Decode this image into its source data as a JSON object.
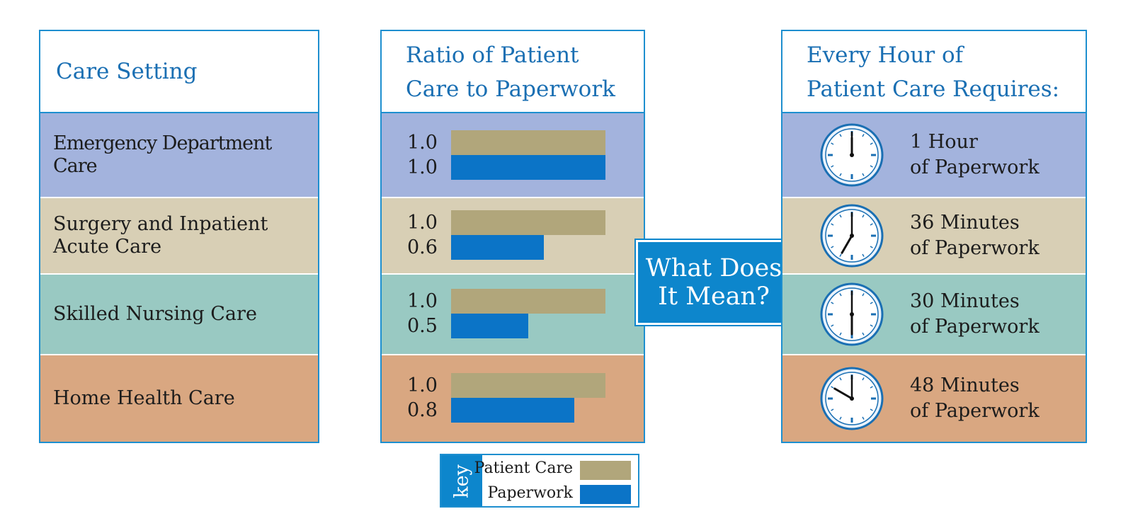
{
  "colors": {
    "header_text": "#1a6fb3",
    "border": "#1e8fcf",
    "patient_care": "#b1a67b",
    "paperwork": "#0b74c7",
    "row_colors": [
      "#a3b3dd",
      "#d8cfb5",
      "#99c9c2",
      "#d9a781"
    ]
  },
  "headers": {
    "setting": "Care Setting",
    "ratio_line1": "Ratio of Patient",
    "ratio_line2": "Care to Paperwork",
    "requires_line1": "Every Hour of",
    "requires_line2": "Patient Care Requires:"
  },
  "center": {
    "line1": "What Does",
    "line2": "It Mean?"
  },
  "rows": [
    {
      "setting_line1": "Emergency Department Care",
      "setting_line2": "",
      "req_line1": "1 Hour",
      "req_line2": "of Paperwork",
      "clock_icon": "clock-icon"
    },
    {
      "setting_line1": "Surgery and Inpatient",
      "setting_line2": "Acute Care",
      "req_line1": "36 Minutes",
      "req_line2": "of Paperwork",
      "clock_icon": "clock-icon"
    },
    {
      "setting_line1": "Skilled Nursing Care",
      "setting_line2": "",
      "req_line1": "30 Minutes",
      "req_line2": "of Paperwork",
      "clock_icon": "clock-icon"
    },
    {
      "setting_line1": "Home Health Care",
      "setting_line2": "",
      "req_line1": "48 Minutes",
      "req_line2": "of Paperwork",
      "clock_icon": "clock-icon"
    }
  ],
  "chart_data": {
    "type": "bar",
    "title": "Ratio of Patient Care to Paperwork",
    "categories": [
      "Emergency Department Care",
      "Surgery and Inpatient Acute Care",
      "Skilled Nursing Care",
      "Home Health Care"
    ],
    "series": [
      {
        "name": "Patient Care",
        "values": [
          1.0,
          1.0,
          1.0,
          1.0
        ],
        "labels": [
          "1.0",
          "1.0",
          "1.0",
          "1.0"
        ]
      },
      {
        "name": "Paperwork",
        "values": [
          1.0,
          0.6,
          0.5,
          0.8
        ],
        "labels": [
          "1.0",
          "0.6",
          "0.5",
          "0.8"
        ]
      }
    ],
    "xlim": [
      0,
      1.0
    ],
    "paperwork_minutes": [
      60,
      36,
      30,
      48
    ]
  },
  "key": {
    "title": "key",
    "patient_care": "Patient Care",
    "paperwork": "Paperwork"
  }
}
